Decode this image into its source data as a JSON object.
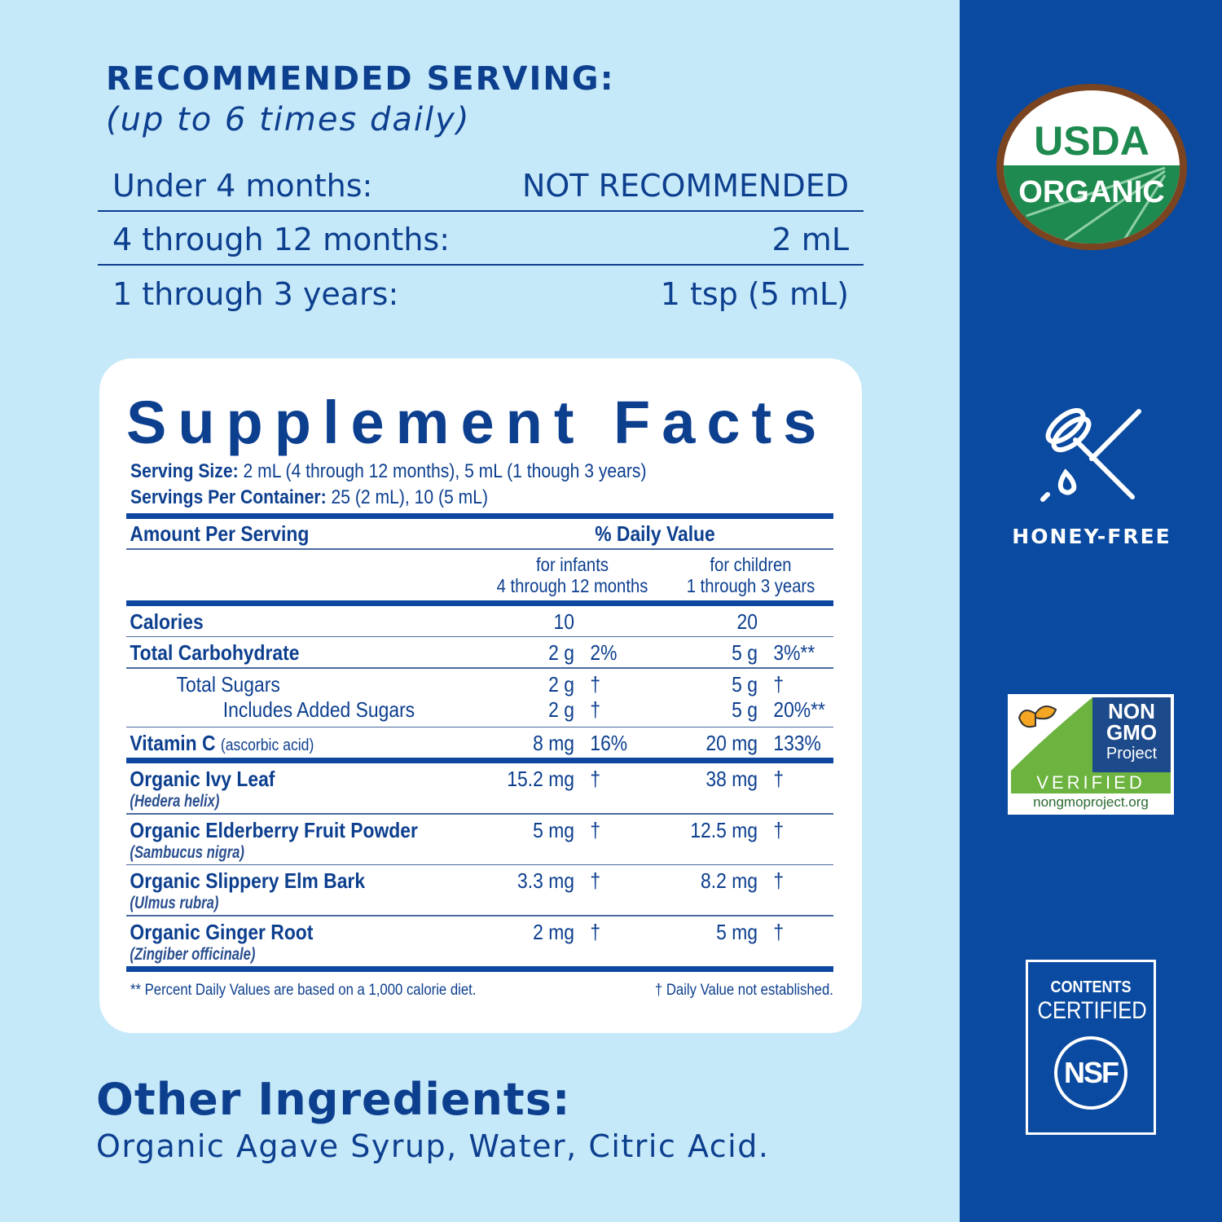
{
  "serving": {
    "title": "RECOMMENDED SERVING:",
    "subtitle": "(up to 6 times daily)",
    "rows": [
      {
        "age": "Under 4 months:",
        "amount": "NOT RECOMMENDED"
      },
      {
        "age": "4 through 12 months:",
        "amount": "2 mL"
      },
      {
        "age": "1 through 3 years:",
        "amount": "1 tsp (5 mL)"
      }
    ]
  },
  "facts": {
    "title": "Supplement Facts",
    "serving_size_label": "Serving Size:",
    "serving_size": " 2 mL (4 through 12 months), 5 mL (1 though 3 years)",
    "servings_label": "Servings Per Container:",
    "servings": " 25 (2 mL), 10 (5 mL)",
    "amount_header": "Amount Per Serving",
    "dv_header": "% Daily Value",
    "col1": [
      "for infants",
      "4 through 12 months"
    ],
    "col2": [
      "for children",
      "1 through 3 years"
    ],
    "rows": [
      {
        "name": "Calories",
        "a1": "10",
        "d1": "",
        "a2": "20",
        "d2": "",
        "bold": true,
        "line": "thin"
      },
      {
        "name": "Total Carbohydrate",
        "a1": "2 g",
        "d1": "2%",
        "a2": "5 g",
        "d2": "3%**",
        "bold": true,
        "line": "thin"
      },
      {
        "name": "Total Sugars",
        "a1": "2 g",
        "d1": "†",
        "a2": "5 g",
        "d2": "†",
        "indent": 1,
        "line": "none"
      },
      {
        "name": "Includes Added Sugars",
        "a1": "2 g",
        "d1": "†",
        "a2": "5 g",
        "d2": "20%**",
        "indent": 2,
        "line": "thin"
      },
      {
        "name": "Vitamin C",
        "note": "(ascorbic acid)",
        "a1": "8 mg",
        "d1": "16%",
        "a2": "20 mg",
        "d2": "133%",
        "bold": true,
        "line": "bar"
      },
      {
        "name": "Organic Ivy Leaf",
        "latin": "(Hedera helix)",
        "a1": "15.2 mg",
        "d1": "†",
        "a2": "38 mg",
        "d2": "†",
        "bold": true,
        "line": "thin"
      },
      {
        "name": "Organic Elderberry Fruit Powder",
        "latin": "(Sambucus nigra)",
        "a1": "5 mg",
        "d1": "†",
        "a2": "12.5 mg",
        "d2": "†",
        "bold": true,
        "line": "thin"
      },
      {
        "name": "Organic Slippery Elm Bark",
        "latin": "(Ulmus rubra)",
        "a1": "3.3 mg",
        "d1": "†",
        "a2": "8.2 mg",
        "d2": "†",
        "bold": true,
        "line": "thin"
      },
      {
        "name": "Organic Ginger Root",
        "latin": "(Zingiber officinale)",
        "a1": "2 mg",
        "d1": "†",
        "a2": "5 mg",
        "d2": "†",
        "bold": true,
        "line": "bar"
      }
    ],
    "footnote_left": "** Percent Daily Values are based on a 1,000 calorie diet.",
    "footnote_right": "† Daily Value not established."
  },
  "other": {
    "title": "Other Ingredients:",
    "value": "Organic Agave Syrup, Water, Citric Acid."
  },
  "badges": {
    "usda_top": "USDA",
    "usda_bottom": "ORGANIC",
    "honey": "HONEY-FREE",
    "nongmo": [
      "NON",
      "GMO",
      "Project"
    ],
    "verified": "VERIFIED",
    "nongmo_url": "nongmoproject.org",
    "nsf_top": "CONTENTS",
    "nsf_mid": "CERTIFIED",
    "nsf": "NSF"
  },
  "colors": {
    "background": "#c6e9f9",
    "sidebar": "#0a4aa0",
    "text": "#0d3f8f",
    "usda_green": "#1e8a4f",
    "usda_brown": "#7a4420"
  }
}
